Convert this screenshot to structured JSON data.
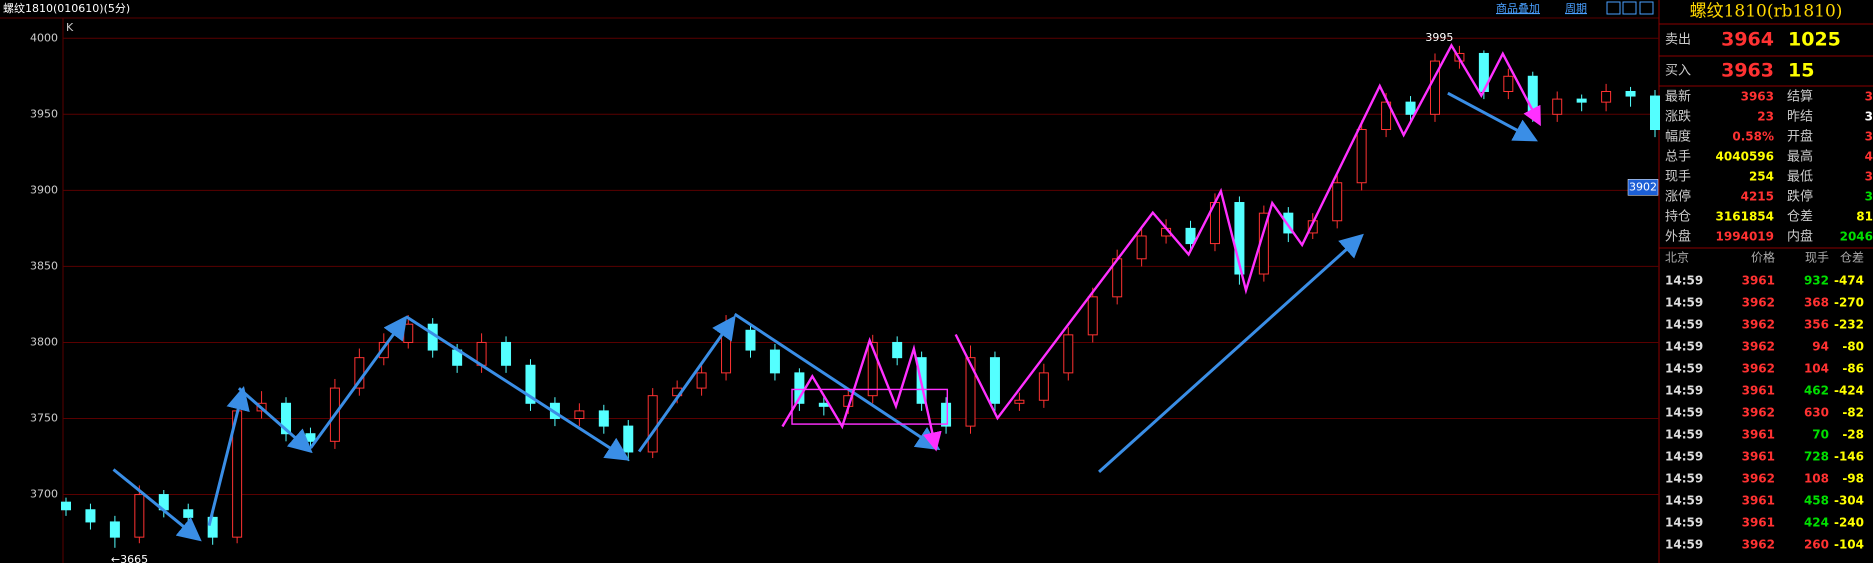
{
  "header": {
    "title": "螺纹1810(010610)(5分)",
    "links": [
      "商品叠加",
      "周期"
    ]
  },
  "chart": {
    "type": "candlestick",
    "label": "K",
    "ylim": [
      3655,
      4012
    ],
    "yticks": [
      3700,
      3750,
      3800,
      3850,
      3900,
      3950,
      4000
    ],
    "grid": true,
    "up_color": "#ff3232",
    "down_color": "#54ffff",
    "grid_color": "#5a0000",
    "open": [
      3695,
      3690,
      3682,
      3672,
      3700,
      3690,
      3685,
      3672,
      3755,
      3760,
      3740,
      3735,
      3770,
      3790,
      3800,
      3812,
      3795,
      3785,
      3800,
      3785,
      3760,
      3750,
      3755,
      3745,
      3728,
      3765,
      3770,
      3780,
      3808,
      3795,
      3780,
      3760,
      3758,
      3765,
      3800,
      3790,
      3760,
      3745,
      3790,
      3760,
      3762,
      3780,
      3805,
      3830,
      3855,
      3870,
      3875,
      3865,
      3892,
      3845,
      3885,
      3872,
      3880,
      3905,
      3940,
      3958,
      3950,
      3985,
      3990,
      3965,
      3975,
      3950,
      3960,
      3958,
      3965,
      3962
    ],
    "high": [
      3698,
      3694,
      3686,
      3706,
      3703,
      3694,
      3688,
      3762,
      3768,
      3764,
      3744,
      3776,
      3796,
      3806,
      3818,
      3816,
      3799,
      3806,
      3804,
      3789,
      3764,
      3760,
      3759,
      3749,
      3770,
      3775,
      3785,
      3818,
      3812,
      3799,
      3783,
      3764,
      3770,
      3805,
      3804,
      3794,
      3764,
      3798,
      3794,
      3767,
      3786,
      3810,
      3836,
      3861,
      3876,
      3881,
      3880,
      3898,
      3896,
      3890,
      3889,
      3885,
      3910,
      3946,
      3964,
      3962,
      3990,
      3995,
      3992,
      3980,
      3978,
      3965,
      3963,
      3970,
      3968,
      3966
    ],
    "low": [
      3686,
      3677,
      3665,
      3668,
      3685,
      3680,
      3667,
      3668,
      3750,
      3735,
      3729,
      3730,
      3765,
      3785,
      3796,
      3790,
      3780,
      3780,
      3780,
      3755,
      3745,
      3745,
      3740,
      3722,
      3724,
      3760,
      3765,
      3775,
      3790,
      3775,
      3755,
      3752,
      3753,
      3760,
      3785,
      3755,
      3740,
      3740,
      3755,
      3755,
      3757,
      3775,
      3800,
      3825,
      3850,
      3865,
      3860,
      3860,
      3838,
      3840,
      3866,
      3868,
      3875,
      3900,
      3935,
      3945,
      3945,
      3980,
      3960,
      3960,
      3945,
      3945,
      3952,
      3952,
      3955,
      3935
    ],
    "close": [
      3690,
      3682,
      3672,
      3700,
      3690,
      3685,
      3672,
      3755,
      3760,
      3740,
      3735,
      3770,
      3790,
      3800,
      3812,
      3795,
      3785,
      3800,
      3785,
      3760,
      3750,
      3755,
      3745,
      3728,
      3765,
      3770,
      3780,
      3808,
      3795,
      3780,
      3760,
      3758,
      3765,
      3800,
      3790,
      3760,
      3745,
      3790,
      3760,
      3762,
      3780,
      3805,
      3830,
      3855,
      3870,
      3875,
      3865,
      3892,
      3845,
      3885,
      3872,
      3880,
      3905,
      3940,
      3958,
      3950,
      3985,
      3990,
      3965,
      3975,
      3950,
      3960,
      3958,
      3965,
      3962,
      3940
    ],
    "max_price": 3995,
    "min_price": {
      "value": 3665,
      "label": "←3665"
    },
    "cursor_price": 3902
  },
  "quote": {
    "title": "螺纹1810(rb1810)",
    "ask": {
      "label": "卖出",
      "price": 3964,
      "volume": 1025
    },
    "bid": {
      "label": "买入",
      "price": 3963,
      "volume": 15
    },
    "stats": [
      {
        "label": "最新",
        "value": "3963",
        "color": "#ff3232",
        "label2": "结算",
        "value2": "3",
        "color2": "#ff3232"
      },
      {
        "label": "涨跌",
        "value": "23",
        "color": "#ff3232",
        "label2": "昨结",
        "value2": "3",
        "color2": "#ffffff"
      },
      {
        "label": "幅度",
        "value": "0.58%",
        "color": "#ff3232",
        "label2": "开盘",
        "value2": "3",
        "color2": "#ff3232"
      },
      {
        "label": "总手",
        "value": "4040596",
        "color": "#ffff00",
        "label2": "最高",
        "value2": "4",
        "color2": "#ff3232"
      },
      {
        "label": "现手",
        "value": "254",
        "color": "#ffff00",
        "label2": "最低",
        "value2": "3",
        "color2": "#ff3232"
      },
      {
        "label": "涨停",
        "value": "4215",
        "color": "#ff3232",
        "label2": "跌停",
        "value2": "3",
        "color2": "#00e000"
      },
      {
        "label": "持仓",
        "value": "3161854",
        "color": "#ffff00",
        "label2": "仓差",
        "value2": "81",
        "color2": "#ffff00"
      },
      {
        "label": "外盘",
        "value": "1994019",
        "color": "#ff3232",
        "label2": "内盘",
        "value2": "2046",
        "color2": "#00e000"
      }
    ],
    "ticks_header": [
      "北京",
      "价格",
      "现手",
      "仓差"
    ],
    "ticks": [
      {
        "time": "14:59",
        "price": "3961",
        "volume": "932",
        "oi_change": "-474",
        "color": "#00e000"
      },
      {
        "time": "14:59",
        "price": "3962",
        "volume": "368",
        "oi_change": "-270",
        "color": "#ff3232"
      },
      {
        "time": "14:59",
        "price": "3962",
        "volume": "356",
        "oi_change": "-232",
        "color": "#ff3232"
      },
      {
        "time": "14:59",
        "price": "3962",
        "volume": "94",
        "oi_change": "-80",
        "color": "#ff3232"
      },
      {
        "time": "14:59",
        "price": "3962",
        "volume": "104",
        "oi_change": "-86",
        "color": "#ff3232"
      },
      {
        "time": "14:59",
        "price": "3961",
        "volume": "462",
        "oi_change": "-424",
        "color": "#00e000"
      },
      {
        "time": "14:59",
        "price": "3962",
        "volume": "630",
        "oi_change": "-82",
        "color": "#ff3232"
      },
      {
        "time": "14:59",
        "price": "3961",
        "volume": "70",
        "oi_change": "-28",
        "color": "#00e000"
      },
      {
        "time": "14:59",
        "price": "3961",
        "volume": "728",
        "oi_change": "-146",
        "color": "#00e000"
      },
      {
        "time": "14:59",
        "price": "3962",
        "volume": "108",
        "oi_change": "-98",
        "color": "#ff3232"
      },
      {
        "time": "14:59",
        "price": "3961",
        "volume": "458",
        "oi_change": "-304",
        "color": "#00e000"
      },
      {
        "time": "14:59",
        "price": "3961",
        "volume": "424",
        "oi_change": "-240",
        "color": "#00e000"
      },
      {
        "time": "14:59",
        "price": "3962",
        "volume": "260",
        "oi_change": "-104",
        "color": "#ff3232"
      }
    ]
  }
}
